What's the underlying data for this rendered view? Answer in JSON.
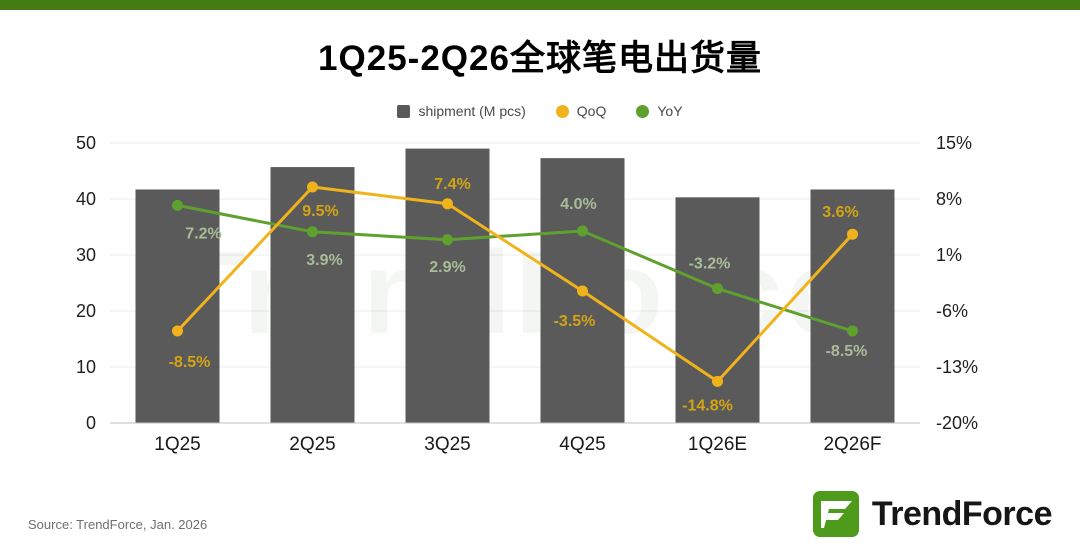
{
  "header": {
    "title": "1Q25-2Q26全球笔电出货量"
  },
  "legend": [
    {
      "label": "shipment (M pcs)",
      "swatch": "square",
      "color": "#5A5A5A"
    },
    {
      "label": "QoQ",
      "swatch": "circle",
      "color": "#F1B31C"
    },
    {
      "label": "YoY",
      "swatch": "circle",
      "color": "#5FA02E"
    }
  ],
  "chart_data": {
    "type": "bar",
    "title": "1Q25-2Q26全球笔电出货量",
    "categories": [
      "1Q25",
      "2Q25",
      "3Q25",
      "4Q25",
      "1Q26E",
      "2Q26F"
    ],
    "series": [
      {
        "name": "shipment (M pcs)",
        "type": "bar",
        "axis": "left",
        "color": "#5A5A5A",
        "values": [
          41.7,
          45.7,
          49.0,
          47.3,
          40.3,
          41.7
        ]
      },
      {
        "name": "QoQ",
        "type": "line",
        "axis": "right",
        "color": "#F1B31C",
        "label_color": "#D3A414",
        "values": [
          -8.5,
          9.5,
          7.4,
          -3.5,
          -14.8,
          3.6
        ],
        "labels": [
          "-8.5%",
          "9.5%",
          "7.4%",
          "-3.5%",
          "-14.8%",
          "3.6%"
        ],
        "label_offsets": [
          [
            12,
            36
          ],
          [
            8,
            29
          ],
          [
            5,
            -15
          ],
          [
            -8,
            35
          ],
          [
            -10,
            29
          ],
          [
            -12,
            -17
          ]
        ]
      },
      {
        "name": "YoY",
        "type": "line",
        "axis": "right",
        "color": "#5FA02E",
        "label_color": "#A9BC97",
        "values": [
          7.2,
          3.9,
          2.9,
          4.0,
          -3.2,
          -8.5
        ],
        "labels": [
          "7.2%",
          "3.9%",
          "2.9%",
          "4.0%",
          "-3.2%",
          "-8.5%"
        ],
        "label_offsets": [
          [
            26,
            33
          ],
          [
            12,
            33
          ],
          [
            0,
            32
          ],
          [
            -4,
            -22
          ],
          [
            -8,
            -20
          ],
          [
            -6,
            25
          ]
        ]
      }
    ],
    "left_axis": {
      "min": 0,
      "max": 50,
      "ticks": [
        0,
        10,
        20,
        30,
        40,
        50
      ]
    },
    "right_axis": {
      "min": -20,
      "max": 15,
      "tick_values": [
        -20,
        -13,
        -6,
        1,
        8,
        15
      ],
      "tick_labels": [
        "-20%",
        "-13%",
        "-6%",
        "1%",
        "8%",
        "15%"
      ]
    },
    "grid": true,
    "legend_position": "top",
    "watermark": "TrendForce"
  },
  "footer": {
    "source": "Source: TrendForce, Jan. 2026",
    "logo_text": "TrendForce"
  }
}
